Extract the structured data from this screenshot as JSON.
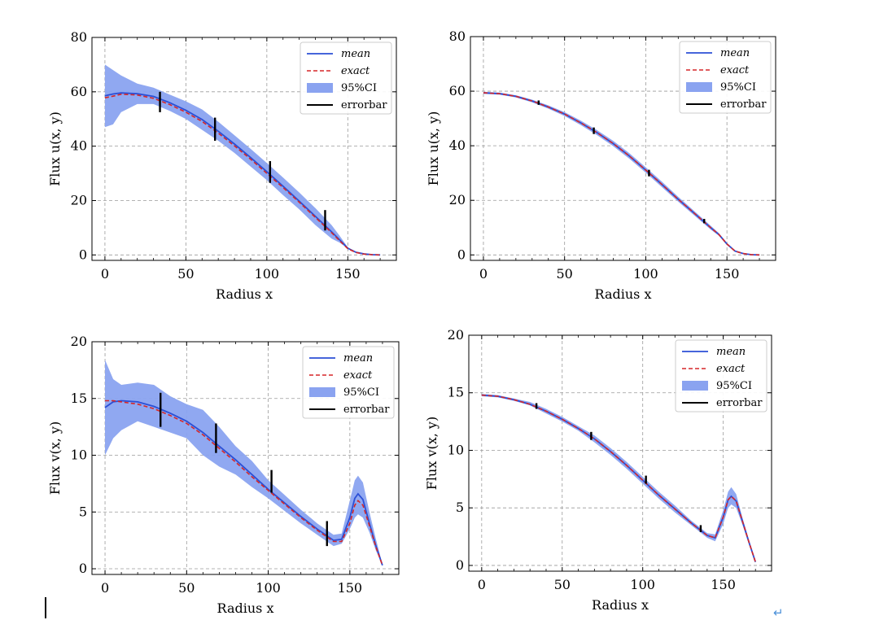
{
  "chart_data": [
    {
      "type": "line",
      "id": "u_noisy",
      "xlabel": "Radius x",
      "ylabel": "Flux u(x, y)",
      "xlim": [
        -8,
        180
      ],
      "ylim": [
        -2,
        80
      ],
      "xticks": [
        0,
        50,
        100,
        150
      ],
      "yticks": [
        0,
        20,
        40,
        60,
        80
      ],
      "grid": true,
      "legend_position": "top-right",
      "legend": [
        "mean",
        "exact",
        "95%CI",
        "errorbar"
      ],
      "x": [
        0,
        5,
        10,
        20,
        30,
        40,
        50,
        60,
        70,
        80,
        90,
        100,
        110,
        120,
        130,
        140,
        145,
        150,
        155,
        160,
        165,
        170
      ],
      "series": [
        {
          "name": "mean",
          "values": [
            58.5,
            59.2,
            59.6,
            59.3,
            58.3,
            56.0,
            53.2,
            49.8,
            45.5,
            40.8,
            35.8,
            30.6,
            25.3,
            19.8,
            14.2,
            8.5,
            5.5,
            2.5,
            1.0,
            0.4,
            0.1,
            0.0
          ]
        },
        {
          "name": "exact",
          "values": [
            57.8,
            58.4,
            59.1,
            58.8,
            57.6,
            55.3,
            52.5,
            49.1,
            44.8,
            40.1,
            35.2,
            30.0,
            24.8,
            19.4,
            13.8,
            8.2,
            5.2,
            2.3,
            0.9,
            0.3,
            0.1,
            0.0
          ]
        },
        {
          "name": "95%CI lower",
          "values": [
            47.0,
            48.0,
            52.5,
            55.5,
            55.5,
            53.0,
            50.0,
            46.0,
            42.0,
            37.5,
            32.5,
            27.5,
            22.0,
            16.8,
            11.0,
            6.0,
            4.5,
            2.3,
            0.9,
            0.3,
            0.1,
            0.0
          ]
        },
        {
          "name": "95%CI upper",
          "values": [
            70.0,
            68.0,
            66.0,
            63.0,
            61.5,
            59.0,
            56.5,
            53.5,
            49.0,
            44.0,
            39.0,
            33.8,
            28.5,
            23.0,
            17.2,
            11.0,
            7.0,
            2.8,
            1.1,
            0.4,
            0.1,
            0.0
          ]
        }
      ],
      "errorbars": [
        {
          "x": 34,
          "low": 52.5,
          "high": 60.0
        },
        {
          "x": 68,
          "low": 42.0,
          "high": 50.5
        },
        {
          "x": 102,
          "low": 26.5,
          "high": 34.5
        },
        {
          "x": 136,
          "low": 9.0,
          "high": 16.5
        }
      ]
    },
    {
      "type": "line",
      "id": "u_clean",
      "xlabel": "Radius x",
      "ylabel": "Flux u(x, y)",
      "xlim": [
        -8,
        180
      ],
      "ylim": [
        -2,
        80
      ],
      "xticks": [
        0,
        50,
        100,
        150
      ],
      "yticks": [
        0,
        20,
        40,
        60,
        80
      ],
      "grid": true,
      "legend_position": "top-right",
      "legend": [
        "mean",
        "exact",
        "95%CI",
        "errorbar"
      ],
      "x": [
        0,
        10,
        20,
        30,
        40,
        50,
        60,
        70,
        80,
        90,
        100,
        110,
        120,
        130,
        140,
        145,
        150,
        155,
        160,
        165,
        170
      ],
      "series": [
        {
          "name": "mean",
          "values": [
            59.4,
            59.1,
            58.1,
            56.4,
            54.2,
            51.6,
            48.4,
            44.8,
            40.8,
            36.2,
            31.1,
            25.8,
            20.4,
            15.2,
            10.0,
            7.5,
            4.0,
            1.4,
            0.5,
            0.1,
            0.0
          ]
        },
        {
          "name": "exact",
          "values": [
            59.4,
            59.1,
            58.1,
            56.4,
            54.2,
            51.6,
            48.4,
            44.8,
            40.8,
            36.2,
            31.1,
            25.8,
            20.4,
            15.2,
            10.0,
            7.5,
            4.0,
            1.4,
            0.5,
            0.1,
            0.0
          ]
        },
        {
          "name": "95%CI lower",
          "values": [
            59.0,
            58.7,
            57.7,
            55.9,
            53.6,
            50.9,
            47.6,
            43.9,
            39.8,
            35.2,
            30.1,
            24.8,
            19.5,
            14.4,
            9.3,
            7.0,
            3.6,
            1.2,
            0.4,
            0.1,
            0.0
          ]
        },
        {
          "name": "95%CI upper",
          "values": [
            59.8,
            59.5,
            58.5,
            56.9,
            54.8,
            52.3,
            49.2,
            45.7,
            41.8,
            37.2,
            32.1,
            26.8,
            21.3,
            16.0,
            10.7,
            8.0,
            4.4,
            1.6,
            0.6,
            0.1,
            0.0
          ]
        }
      ],
      "errorbars": [
        {
          "x": 34,
          "low": 55.0,
          "high": 56.6
        },
        {
          "x": 68,
          "low": 44.3,
          "high": 46.7
        },
        {
          "x": 102,
          "low": 28.8,
          "high": 31.2
        },
        {
          "x": 136,
          "low": 11.6,
          "high": 13.2
        }
      ]
    },
    {
      "type": "line",
      "id": "v_noisy",
      "xlabel": "Radius x",
      "ylabel": "Flux v(x, y)",
      "xlim": [
        -8,
        180
      ],
      "ylim": [
        -0.5,
        20
      ],
      "xticks": [
        0,
        50,
        100,
        150
      ],
      "yticks": [
        0,
        5,
        10,
        15,
        20
      ],
      "grid": true,
      "legend_position": "top-right",
      "legend": [
        "mean",
        "exact",
        "95%CI",
        "errorbar"
      ],
      "x": [
        0,
        5,
        10,
        20,
        30,
        40,
        50,
        60,
        70,
        80,
        90,
        100,
        110,
        120,
        130,
        140,
        145,
        150,
        153,
        155,
        158,
        162,
        166,
        170
      ],
      "series": [
        {
          "name": "mean",
          "values": [
            14.2,
            14.7,
            14.8,
            14.7,
            14.3,
            13.7,
            13.0,
            12.0,
            10.8,
            9.6,
            8.3,
            7.0,
            5.8,
            4.6,
            3.5,
            2.5,
            2.6,
            4.5,
            6.2,
            6.6,
            6.1,
            4.0,
            2.0,
            0.3
          ]
        },
        {
          "name": "exact",
          "values": [
            14.8,
            14.8,
            14.7,
            14.5,
            14.1,
            13.5,
            12.8,
            11.8,
            10.6,
            9.4,
            8.1,
            6.9,
            5.7,
            4.5,
            3.4,
            2.4,
            2.4,
            4.0,
            5.6,
            6.0,
            5.6,
            3.8,
            1.9,
            0.3
          ]
        },
        {
          "name": "95%CI lower",
          "values": [
            10.0,
            11.5,
            12.2,
            13.0,
            12.5,
            12.0,
            11.5,
            10.0,
            9.0,
            8.3,
            7.2,
            6.2,
            5.1,
            4.0,
            3.0,
            2.0,
            2.2,
            3.5,
            4.5,
            4.8,
            4.5,
            3.2,
            1.6,
            0.3
          ]
        },
        {
          "name": "95%CI upper",
          "values": [
            18.4,
            16.7,
            16.2,
            16.4,
            16.2,
            15.2,
            14.5,
            14.0,
            12.5,
            10.8,
            9.5,
            7.8,
            6.5,
            5.2,
            4.0,
            3.0,
            3.1,
            6.0,
            7.8,
            8.2,
            7.6,
            5.0,
            2.6,
            0.4
          ]
        }
      ],
      "errorbars": [
        {
          "x": 34,
          "low": 12.5,
          "high": 15.5
        },
        {
          "x": 68,
          "low": 10.2,
          "high": 12.8
        },
        {
          "x": 102,
          "low": 6.7,
          "high": 8.7
        },
        {
          "x": 136,
          "low": 2.0,
          "high": 4.2
        }
      ]
    },
    {
      "type": "line",
      "id": "v_clean",
      "xlabel": "Radius x",
      "ylabel": "Flux v(x, y)",
      "xlim": [
        -8,
        180
      ],
      "ylim": [
        -0.5,
        20
      ],
      "xticks": [
        0,
        50,
        100,
        150
      ],
      "yticks": [
        0,
        5,
        10,
        15,
        20
      ],
      "grid": true,
      "legend_position": "top-right",
      "legend": [
        "mean",
        "exact",
        "95%CI",
        "errorbar"
      ],
      "x": [
        0,
        10,
        20,
        30,
        40,
        50,
        60,
        70,
        80,
        90,
        100,
        110,
        120,
        130,
        140,
        145,
        150,
        153,
        155,
        158,
        162,
        166,
        170
      ],
      "series": [
        {
          "name": "mean",
          "values": [
            14.8,
            14.7,
            14.4,
            14.0,
            13.4,
            12.7,
            11.9,
            11.0,
            9.9,
            8.7,
            7.4,
            6.1,
            4.9,
            3.7,
            2.6,
            2.4,
            4.2,
            5.7,
            6.0,
            5.6,
            3.8,
            2.0,
            0.3
          ]
        },
        {
          "name": "exact",
          "values": [
            14.8,
            14.7,
            14.4,
            14.0,
            13.4,
            12.7,
            11.9,
            11.0,
            9.9,
            8.7,
            7.4,
            6.1,
            4.9,
            3.7,
            2.6,
            2.4,
            4.2,
            5.7,
            6.0,
            5.6,
            3.8,
            2.0,
            0.3
          ]
        },
        {
          "name": "95%CI lower",
          "values": [
            14.7,
            14.6,
            14.3,
            13.9,
            13.2,
            12.5,
            11.7,
            10.7,
            9.6,
            8.4,
            7.1,
            5.8,
            4.6,
            3.5,
            2.4,
            2.1,
            3.6,
            5.0,
            5.3,
            5.0,
            3.5,
            1.8,
            0.3
          ]
        },
        {
          "name": "95%CI upper",
          "values": [
            14.9,
            14.8,
            14.5,
            14.2,
            13.6,
            12.9,
            12.1,
            11.3,
            10.2,
            9.0,
            7.7,
            6.4,
            5.2,
            3.9,
            2.8,
            2.7,
            4.8,
            6.4,
            6.8,
            6.2,
            4.1,
            2.2,
            0.4
          ]
        }
      ],
      "errorbars": [
        {
          "x": 34,
          "low": 13.6,
          "high": 14.1
        },
        {
          "x": 68,
          "low": 10.9,
          "high": 11.6
        },
        {
          "x": 102,
          "low": 7.1,
          "high": 7.8
        },
        {
          "x": 136,
          "low": 2.9,
          "high": 3.5
        }
      ]
    }
  ],
  "colors": {
    "mean": "#2b4fd6",
    "exact": "#d62728",
    "ci": "#8aa3f0",
    "errorbar": "#000000",
    "grid": "#9a9a9a"
  },
  "legend_labels": {
    "mean": "mean",
    "exact": "exact",
    "ci": "95%CI",
    "errorbar": "errorbar"
  },
  "footer": {
    "return_mark": "↵"
  }
}
